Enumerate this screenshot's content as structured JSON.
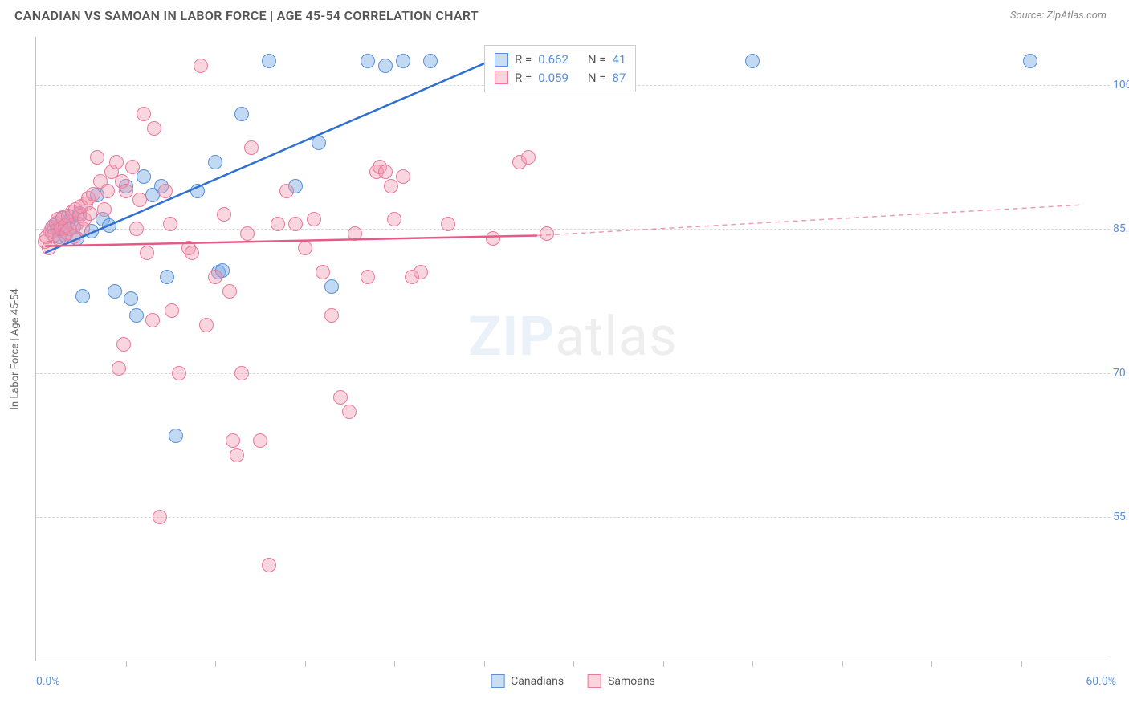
{
  "title": "CANADIAN VS SAMOAN IN LABOR FORCE | AGE 45-54 CORRELATION CHART",
  "source": "Source: ZipAtlas.com",
  "chart": {
    "type": "scatter",
    "y_axis_title": "In Labor Force | Age 45-54",
    "xlim": [
      0,
      60
    ],
    "ylim": [
      40,
      105
    ],
    "x_label_min": "0.0%",
    "x_label_max": "60.0%",
    "y_ticks": [
      55,
      70,
      85,
      100
    ],
    "y_tick_labels": [
      "55.0%",
      "70.0%",
      "85.0%",
      "100.0%"
    ],
    "x_minor_ticks": [
      5,
      10,
      15,
      20,
      25,
      30,
      35,
      40,
      45,
      50,
      55
    ],
    "background": "#ffffff",
    "grid_color": "#d8d8d8",
    "axis_color": "#c0c0c0",
    "tick_label_color": "#5b8fd6",
    "watermark_text_zip": "ZIP",
    "watermark_text_atlas": "atlas"
  },
  "series": [
    {
      "name": "Canadians",
      "swatch_fill": "#c9ddf3",
      "swatch_border": "#5b8fd6",
      "point_fill": "rgba(120,170,230,0.45)",
      "point_border": "#5b8fd6",
      "trend_color": "#2f6fd0",
      "trend": {
        "x1": 0.5,
        "y1": 82.5,
        "x2": 26,
        "y2": 103,
        "dash_x2": 26,
        "dash_y2": 103
      },
      "stats": {
        "R": "0.662",
        "N": "41"
      },
      "points": [
        [
          0.9,
          84.7
        ],
        [
          1.0,
          85.4
        ],
        [
          1.2,
          85.0
        ],
        [
          1.3,
          84.2
        ],
        [
          1.5,
          86.1
        ],
        [
          1.6,
          84.4
        ],
        [
          1.8,
          85.8
        ],
        [
          2.0,
          86.3
        ],
        [
          2.1,
          85.2
        ],
        [
          2.3,
          84.0
        ],
        [
          2.4,
          86.6
        ],
        [
          2.6,
          78.0
        ],
        [
          3.1,
          84.8
        ],
        [
          3.4,
          88.5
        ],
        [
          3.7,
          86.0
        ],
        [
          4.1,
          85.4
        ],
        [
          4.4,
          78.5
        ],
        [
          5.0,
          89.5
        ],
        [
          5.3,
          77.8
        ],
        [
          5.6,
          76.0
        ],
        [
          6.0,
          90.5
        ],
        [
          6.5,
          88.5
        ],
        [
          7.0,
          89.5
        ],
        [
          7.3,
          80.0
        ],
        [
          7.8,
          63.5
        ],
        [
          9.0,
          89.0
        ],
        [
          10.0,
          92.0
        ],
        [
          10.2,
          80.5
        ],
        [
          10.4,
          80.7
        ],
        [
          11.5,
          97.0
        ],
        [
          13,
          102.5
        ],
        [
          14.5,
          89.5
        ],
        [
          15.8,
          94.0
        ],
        [
          16.5,
          79.0
        ],
        [
          18.5,
          102.5
        ],
        [
          19.5,
          102.0
        ],
        [
          20.5,
          102.5
        ],
        [
          22,
          102.5
        ],
        [
          26.5,
          102.5
        ],
        [
          40,
          102.5
        ],
        [
          55.5,
          102.5
        ]
      ]
    },
    {
      "name": "Samoans",
      "swatch_fill": "#f9d4dd",
      "swatch_border": "#e87a9a",
      "point_fill": "rgba(240,150,175,0.40)",
      "point_border": "#e87a9a",
      "trend_color": "#e65a86",
      "trend": {
        "x1": 0.5,
        "y1": 83.2,
        "x2": 28,
        "y2": 84.3,
        "dash_x2": 58.5,
        "dash_y2": 87.5
      },
      "stats": {
        "R": "0.059",
        "N": "87"
      },
      "points": [
        [
          0.5,
          83.7
        ],
        [
          0.6,
          84.2
        ],
        [
          0.7,
          83.0
        ],
        [
          0.8,
          84.8
        ],
        [
          0.9,
          85.2
        ],
        [
          1.0,
          84.4
        ],
        [
          1.1,
          85.6
        ],
        [
          1.2,
          86.0
        ],
        [
          1.3,
          84.0
        ],
        [
          1.4,
          85.0
        ],
        [
          1.5,
          86.2
        ],
        [
          1.6,
          85.4
        ],
        [
          1.7,
          84.6
        ],
        [
          1.8,
          86.4
        ],
        [
          1.9,
          85.0
        ],
        [
          2.0,
          86.8
        ],
        [
          2.1,
          84.2
        ],
        [
          2.2,
          87.0
        ],
        [
          2.3,
          85.6
        ],
        [
          2.4,
          86.4
        ],
        [
          2.5,
          87.4
        ],
        [
          2.6,
          85.0
        ],
        [
          2.7,
          86.0
        ],
        [
          2.8,
          87.6
        ],
        [
          2.9,
          88.2
        ],
        [
          3.0,
          86.6
        ],
        [
          3.2,
          88.6
        ],
        [
          3.4,
          92.5
        ],
        [
          3.6,
          90.0
        ],
        [
          3.8,
          87.0
        ],
        [
          4.0,
          89.0
        ],
        [
          4.2,
          91.0
        ],
        [
          4.5,
          92.0
        ],
        [
          4.6,
          70.5
        ],
        [
          4.8,
          90.0
        ],
        [
          4.9,
          73.0
        ],
        [
          5.0,
          89.0
        ],
        [
          5.4,
          91.5
        ],
        [
          5.6,
          85.0
        ],
        [
          5.8,
          88.0
        ],
        [
          6.0,
          97.0
        ],
        [
          6.2,
          82.5
        ],
        [
          6.5,
          75.5
        ],
        [
          6.6,
          95.5
        ],
        [
          6.9,
          55.0
        ],
        [
          7.2,
          89.0
        ],
        [
          7.5,
          85.5
        ],
        [
          7.6,
          76.5
        ],
        [
          8.0,
          70.0
        ],
        [
          8.5,
          83.0
        ],
        [
          8.7,
          82.5
        ],
        [
          9.2,
          102.0
        ],
        [
          9.5,
          75.0
        ],
        [
          10.0,
          80.0
        ],
        [
          10.5,
          86.5
        ],
        [
          10.8,
          78.5
        ],
        [
          11,
          63.0
        ],
        [
          11.2,
          61.5
        ],
        [
          11.5,
          70.0
        ],
        [
          11.8,
          84.5
        ],
        [
          12,
          93.5
        ],
        [
          12.5,
          63.0
        ],
        [
          13,
          50.0
        ],
        [
          13.5,
          85.5
        ],
        [
          14,
          89.0
        ],
        [
          14.5,
          85.5
        ],
        [
          15,
          83.0
        ],
        [
          15.5,
          86.0
        ],
        [
          16,
          80.5
        ],
        [
          16.5,
          76.0
        ],
        [
          17,
          67.5
        ],
        [
          17.5,
          66.0
        ],
        [
          17.8,
          84.5
        ],
        [
          18.5,
          80.0
        ],
        [
          19,
          91.0
        ],
        [
          19.2,
          91.5
        ],
        [
          19.5,
          91.0
        ],
        [
          19.8,
          89.5
        ],
        [
          20,
          86.0
        ],
        [
          20.5,
          90.5
        ],
        [
          21,
          80.0
        ],
        [
          21.5,
          80.5
        ],
        [
          23,
          85.5
        ],
        [
          25.5,
          84.0
        ],
        [
          27,
          92.0
        ],
        [
          27.5,
          92.5
        ],
        [
          28.5,
          84.5
        ]
      ]
    }
  ],
  "legend_box": {
    "rows": [
      {
        "R_label": "R =",
        "R_value": "0.662",
        "N_label": "N =",
        "N_value": "41"
      },
      {
        "R_label": "R =",
        "R_value": "0.059",
        "N_label": "N =",
        "N_value": "87"
      }
    ]
  }
}
